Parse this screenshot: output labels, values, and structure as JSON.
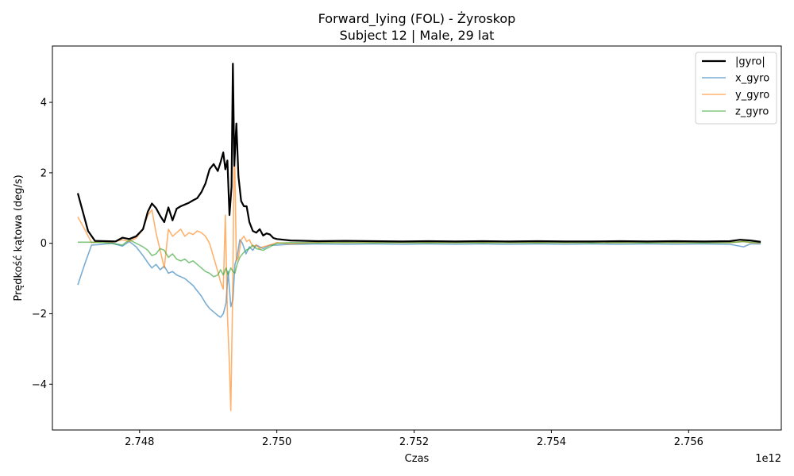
{
  "chart_data": {
    "type": "line",
    "title": "Forward_lying (FOL) - Żyroskop",
    "subtitle": "Subject 12 | Male, 29 lat",
    "xlabel": "Czas",
    "ylabel": "Prędkość kątowa (deg/s)",
    "x_offset_label": "1e12",
    "xlim": [
      2.74673,
      2.75735
    ],
    "ylim": [
      -5.3,
      5.6
    ],
    "x_ticks": [
      2.748,
      2.75,
      2.752,
      2.754,
      2.756
    ],
    "x_tick_labels": [
      "2.748",
      "2.750",
      "2.752",
      "2.754",
      "2.756"
    ],
    "y_ticks": [
      -4,
      -2,
      0,
      2,
      4
    ],
    "y_tick_labels": [
      "−4",
      "−2",
      "0",
      "2",
      "4"
    ],
    "legend_position": "top-right",
    "series": [
      {
        "name": "|gyro|",
        "color": "#000000",
        "points": [
          [
            2.7471,
            1.42
          ],
          [
            2.74725,
            0.35
          ],
          [
            2.74735,
            0.07
          ],
          [
            2.7475,
            0.06
          ],
          [
            2.74765,
            0.05
          ],
          [
            2.74775,
            0.16
          ],
          [
            2.74785,
            0.12
          ],
          [
            2.74795,
            0.2
          ],
          [
            2.74805,
            0.4
          ],
          [
            2.74812,
            0.9
          ],
          [
            2.74818,
            1.13
          ],
          [
            2.74824,
            1.0
          ],
          [
            2.7483,
            0.78
          ],
          [
            2.74836,
            0.6
          ],
          [
            2.74842,
            1.02
          ],
          [
            2.74848,
            0.65
          ],
          [
            2.74854,
            0.98
          ],
          [
            2.7486,
            1.05
          ],
          [
            2.74866,
            1.1
          ],
          [
            2.74872,
            1.15
          ],
          [
            2.74878,
            1.22
          ],
          [
            2.74884,
            1.28
          ],
          [
            2.7489,
            1.45
          ],
          [
            2.74896,
            1.7
          ],
          [
            2.74902,
            2.1
          ],
          [
            2.74908,
            2.25
          ],
          [
            2.74914,
            2.05
          ],
          [
            2.74918,
            2.3
          ],
          [
            2.74922,
            2.58
          ],
          [
            2.74925,
            2.1
          ],
          [
            2.74928,
            2.35
          ],
          [
            2.74931,
            0.8
          ],
          [
            2.74934,
            1.6
          ],
          [
            2.74936,
            5.1
          ],
          [
            2.74938,
            2.2
          ],
          [
            2.74941,
            3.4
          ],
          [
            2.74944,
            1.9
          ],
          [
            2.74948,
            1.2
          ],
          [
            2.74952,
            1.05
          ],
          [
            2.74956,
            1.05
          ],
          [
            2.7496,
            0.6
          ],
          [
            2.74965,
            0.35
          ],
          [
            2.7497,
            0.3
          ],
          [
            2.74975,
            0.4
          ],
          [
            2.7498,
            0.22
          ],
          [
            2.74985,
            0.28
          ],
          [
            2.7499,
            0.25
          ],
          [
            2.74995,
            0.15
          ],
          [
            2.75,
            0.12
          ],
          [
            2.7502,
            0.08
          ],
          [
            2.7506,
            0.06
          ],
          [
            2.751,
            0.07
          ],
          [
            2.7514,
            0.06
          ],
          [
            2.7518,
            0.05
          ],
          [
            2.7522,
            0.06
          ],
          [
            2.7526,
            0.05
          ],
          [
            2.753,
            0.06
          ],
          [
            2.7534,
            0.05
          ],
          [
            2.7538,
            0.06
          ],
          [
            2.7542,
            0.05
          ],
          [
            2.7546,
            0.05
          ],
          [
            2.755,
            0.06
          ],
          [
            2.7554,
            0.05
          ],
          [
            2.7558,
            0.06
          ],
          [
            2.7562,
            0.05
          ],
          [
            2.7566,
            0.06
          ],
          [
            2.75675,
            0.1
          ],
          [
            2.7569,
            0.08
          ],
          [
            2.75705,
            0.04
          ]
        ]
      },
      {
        "name": "x_gyro",
        "color": "#1f77b4",
        "points": [
          [
            2.7471,
            -1.18
          ],
          [
            2.7472,
            -0.6
          ],
          [
            2.7473,
            -0.05
          ],
          [
            2.74745,
            -0.03
          ],
          [
            2.7476,
            0.0
          ],
          [
            2.74775,
            -0.08
          ],
          [
            2.74785,
            0.05
          ],
          [
            2.74795,
            -0.1
          ],
          [
            2.74805,
            -0.35
          ],
          [
            2.74812,
            -0.55
          ],
          [
            2.74818,
            -0.7
          ],
          [
            2.74824,
            -0.6
          ],
          [
            2.7483,
            -0.75
          ],
          [
            2.74836,
            -0.65
          ],
          [
            2.74842,
            -0.85
          ],
          [
            2.74848,
            -0.8
          ],
          [
            2.74854,
            -0.9
          ],
          [
            2.7486,
            -0.95
          ],
          [
            2.74866,
            -1.0
          ],
          [
            2.74872,
            -1.1
          ],
          [
            2.74878,
            -1.2
          ],
          [
            2.74884,
            -1.35
          ],
          [
            2.7489,
            -1.5
          ],
          [
            2.74896,
            -1.7
          ],
          [
            2.74902,
            -1.85
          ],
          [
            2.74908,
            -1.95
          ],
          [
            2.74914,
            -2.05
          ],
          [
            2.74918,
            -2.1
          ],
          [
            2.74922,
            -2.0
          ],
          [
            2.74926,
            -1.7
          ],
          [
            2.74929,
            -0.8
          ],
          [
            2.74933,
            -1.8
          ],
          [
            2.74936,
            -1.6
          ],
          [
            2.74939,
            -0.6
          ],
          [
            2.74942,
            -0.4
          ],
          [
            2.74946,
            0.1
          ],
          [
            2.7495,
            0.0
          ],
          [
            2.74955,
            -0.3
          ],
          [
            2.7496,
            -0.1
          ],
          [
            2.74965,
            -0.2
          ],
          [
            2.7497,
            -0.05
          ],
          [
            2.7498,
            -0.15
          ],
          [
            2.7499,
            -0.05
          ],
          [
            2.75,
            -0.05
          ],
          [
            2.7502,
            -0.03
          ],
          [
            2.7506,
            -0.02
          ],
          [
            2.751,
            -0.03
          ],
          [
            2.7514,
            -0.02
          ],
          [
            2.7518,
            -0.03
          ],
          [
            2.7522,
            -0.02
          ],
          [
            2.7526,
            -0.03
          ],
          [
            2.753,
            -0.02
          ],
          [
            2.7534,
            -0.03
          ],
          [
            2.7538,
            -0.02
          ],
          [
            2.7542,
            -0.03
          ],
          [
            2.7546,
            -0.02
          ],
          [
            2.755,
            -0.03
          ],
          [
            2.7554,
            -0.02
          ],
          [
            2.7558,
            -0.03
          ],
          [
            2.7562,
            -0.02
          ],
          [
            2.7566,
            -0.03
          ],
          [
            2.7568,
            -0.1
          ],
          [
            2.7569,
            -0.02
          ],
          [
            2.75705,
            -0.02
          ]
        ]
      },
      {
        "name": "y_gyro",
        "color": "#ff7f0e",
        "points": [
          [
            2.7471,
            0.75
          ],
          [
            2.7472,
            0.4
          ],
          [
            2.7473,
            0.02
          ],
          [
            2.74745,
            0.05
          ],
          [
            2.7476,
            0.03
          ],
          [
            2.74775,
            0.1
          ],
          [
            2.74785,
            0.05
          ],
          [
            2.74795,
            0.15
          ],
          [
            2.74805,
            0.4
          ],
          [
            2.74812,
            0.8
          ],
          [
            2.74818,
            0.95
          ],
          [
            2.74824,
            0.3
          ],
          [
            2.7483,
            -0.2
          ],
          [
            2.74836,
            -0.7
          ],
          [
            2.74842,
            0.4
          ],
          [
            2.74848,
            0.2
          ],
          [
            2.74854,
            0.3
          ],
          [
            2.7486,
            0.4
          ],
          [
            2.74866,
            0.2
          ],
          [
            2.74872,
            0.3
          ],
          [
            2.74878,
            0.25
          ],
          [
            2.74884,
            0.35
          ],
          [
            2.7489,
            0.3
          ],
          [
            2.74896,
            0.2
          ],
          [
            2.74902,
            0.0
          ],
          [
            2.74908,
            -0.4
          ],
          [
            2.74914,
            -0.8
          ],
          [
            2.74918,
            -1.1
          ],
          [
            2.74922,
            -1.3
          ],
          [
            2.74925,
            0.8
          ],
          [
            2.74928,
            -2.0
          ],
          [
            2.74931,
            -3.5
          ],
          [
            2.74933,
            -4.75
          ],
          [
            2.74936,
            -1.0
          ],
          [
            2.74938,
            3.1
          ],
          [
            2.74941,
            -0.5
          ],
          [
            2.74944,
            -0.4
          ],
          [
            2.74948,
            0.1
          ],
          [
            2.74952,
            0.2
          ],
          [
            2.74956,
            0.05
          ],
          [
            2.7496,
            0.1
          ],
          [
            2.74965,
            -0.1
          ],
          [
            2.7497,
            -0.05
          ],
          [
            2.74975,
            -0.15
          ],
          [
            2.7498,
            -0.1
          ],
          [
            2.7499,
            -0.05
          ],
          [
            2.75,
            0.02
          ],
          [
            2.7502,
            -0.02
          ],
          [
            2.7506,
            0.03
          ],
          [
            2.751,
            0.02
          ],
          [
            2.7514,
            0.03
          ],
          [
            2.7518,
            0.02
          ],
          [
            2.7522,
            0.03
          ],
          [
            2.7526,
            0.02
          ],
          [
            2.753,
            0.03
          ],
          [
            2.7534,
            0.02
          ],
          [
            2.7538,
            0.03
          ],
          [
            2.7542,
            0.02
          ],
          [
            2.7546,
            0.03
          ],
          [
            2.755,
            0.02
          ],
          [
            2.7554,
            0.03
          ],
          [
            2.7558,
            0.02
          ],
          [
            2.7562,
            0.03
          ],
          [
            2.7566,
            0.02
          ],
          [
            2.7568,
            0.05
          ],
          [
            2.7569,
            0.02
          ],
          [
            2.75705,
            0.01
          ]
        ]
      },
      {
        "name": "z_gyro",
        "color": "#2ca02c",
        "points": [
          [
            2.7471,
            0.03
          ],
          [
            2.7473,
            0.03
          ],
          [
            2.74745,
            0.02
          ],
          [
            2.7476,
            0.0
          ],
          [
            2.74775,
            -0.05
          ],
          [
            2.74785,
            0.1
          ],
          [
            2.74795,
            0.0
          ],
          [
            2.74805,
            -0.1
          ],
          [
            2.74812,
            -0.2
          ],
          [
            2.74818,
            -0.35
          ],
          [
            2.74824,
            -0.3
          ],
          [
            2.7483,
            -0.15
          ],
          [
            2.74836,
            -0.2
          ],
          [
            2.74842,
            -0.4
          ],
          [
            2.74848,
            -0.3
          ],
          [
            2.74854,
            -0.45
          ],
          [
            2.7486,
            -0.5
          ],
          [
            2.74866,
            -0.45
          ],
          [
            2.74872,
            -0.55
          ],
          [
            2.74878,
            -0.5
          ],
          [
            2.74884,
            -0.6
          ],
          [
            2.7489,
            -0.7
          ],
          [
            2.74896,
            -0.8
          ],
          [
            2.74902,
            -0.85
          ],
          [
            2.74908,
            -0.95
          ],
          [
            2.74914,
            -0.9
          ],
          [
            2.74918,
            -0.75
          ],
          [
            2.74922,
            -0.9
          ],
          [
            2.74926,
            -0.7
          ],
          [
            2.74929,
            -0.9
          ],
          [
            2.74933,
            -0.7
          ],
          [
            2.74936,
            -0.8
          ],
          [
            2.74939,
            -0.85
          ],
          [
            2.74942,
            -0.6
          ],
          [
            2.74946,
            -0.4
          ],
          [
            2.7495,
            -0.3
          ],
          [
            2.74955,
            -0.2
          ],
          [
            2.7496,
            -0.15
          ],
          [
            2.74965,
            -0.05
          ],
          [
            2.7497,
            -0.15
          ],
          [
            2.7498,
            -0.2
          ],
          [
            2.7499,
            -0.1
          ],
          [
            2.75,
            0.0
          ],
          [
            2.7502,
            0.02
          ],
          [
            2.7506,
            0.01
          ],
          [
            2.751,
            0.02
          ],
          [
            2.7514,
            0.01
          ],
          [
            2.7518,
            0.02
          ],
          [
            2.7522,
            0.01
          ],
          [
            2.7526,
            0.02
          ],
          [
            2.753,
            0.01
          ],
          [
            2.7534,
            0.02
          ],
          [
            2.7538,
            0.01
          ],
          [
            2.7542,
            0.02
          ],
          [
            2.7546,
            0.01
          ],
          [
            2.755,
            0.02
          ],
          [
            2.7554,
            0.01
          ],
          [
            2.7558,
            0.02
          ],
          [
            2.7562,
            0.01
          ],
          [
            2.7566,
            0.02
          ],
          [
            2.7568,
            0.05
          ],
          [
            2.7569,
            0.03
          ],
          [
            2.75705,
            0.02
          ]
        ]
      }
    ]
  }
}
